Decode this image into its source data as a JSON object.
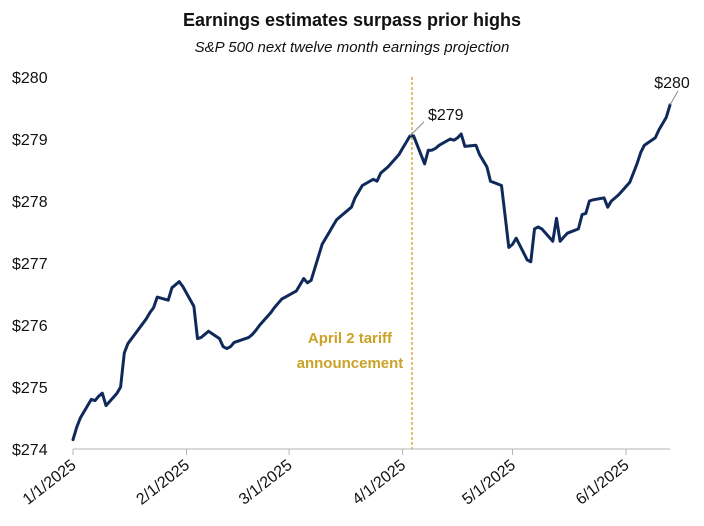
{
  "chart_data": {
    "type": "line",
    "title": "Earnings estimates surpass prior highs",
    "subtitle": "S&P 500 next twelve month earnings projection",
    "xlabel": "",
    "ylabel": "",
    "x_ticks": [
      "1/1/2025",
      "2/1/2025",
      "3/1/2025",
      "4/1/2025",
      "5/1/2025",
      "6/1/2025"
    ],
    "y_ticks": [
      "$274",
      "$275",
      "$276",
      "$277",
      "$278",
      "$279",
      "$280"
    ],
    "ylim": [
      274,
      280
    ],
    "xlim": [
      "2025-01-01",
      "2025-06-05"
    ],
    "grid": false,
    "line_color": "#0f2a5a",
    "series": [
      {
        "points": [
          [
            "2025-01-01",
            274.15
          ],
          [
            "2025-01-02",
            274.35
          ],
          [
            "2025-01-03",
            274.5
          ],
          [
            "2025-01-06",
            274.8
          ],
          [
            "2025-01-07",
            274.78
          ],
          [
            "2025-01-08",
            274.85
          ],
          [
            "2025-01-09",
            274.9
          ],
          [
            "2025-01-10",
            274.7
          ],
          [
            "2025-01-13",
            274.9
          ],
          [
            "2025-01-14",
            275.0
          ],
          [
            "2025-01-15",
            275.55
          ],
          [
            "2025-01-16",
            275.7
          ],
          [
            "2025-01-17",
            275.78
          ],
          [
            "2025-01-21",
            276.1
          ],
          [
            "2025-01-22",
            276.2
          ],
          [
            "2025-01-23",
            276.28
          ],
          [
            "2025-01-24",
            276.45
          ],
          [
            "2025-01-27",
            276.4
          ],
          [
            "2025-01-28",
            276.6
          ],
          [
            "2025-01-29",
            276.65
          ],
          [
            "2025-01-30",
            276.7
          ],
          [
            "2025-01-31",
            276.62
          ],
          [
            "2025-02-03",
            276.3
          ],
          [
            "2025-02-04",
            275.78
          ],
          [
            "2025-02-05",
            275.8
          ],
          [
            "2025-02-06",
            275.85
          ],
          [
            "2025-02-07",
            275.9
          ],
          [
            "2025-02-10",
            275.78
          ],
          [
            "2025-02-11",
            275.65
          ],
          [
            "2025-02-12",
            275.62
          ],
          [
            "2025-02-13",
            275.65
          ],
          [
            "2025-02-14",
            275.72
          ],
          [
            "2025-02-18",
            275.8
          ],
          [
            "2025-02-19",
            275.85
          ],
          [
            "2025-02-20",
            275.92
          ],
          [
            "2025-02-21",
            276.0
          ],
          [
            "2025-02-24",
            276.2
          ],
          [
            "2025-02-25",
            276.28
          ],
          [
            "2025-02-26",
            276.35
          ],
          [
            "2025-02-27",
            276.42
          ],
          [
            "2025-02-28",
            276.45
          ],
          [
            "2025-03-03",
            276.55
          ],
          [
            "2025-03-04",
            276.65
          ],
          [
            "2025-03-05",
            276.75
          ],
          [
            "2025-03-06",
            276.68
          ],
          [
            "2025-03-07",
            276.72
          ],
          [
            "2025-03-10",
            277.3
          ],
          [
            "2025-03-11",
            277.4
          ],
          [
            "2025-03-12",
            277.5
          ],
          [
            "2025-03-13",
            277.6
          ],
          [
            "2025-03-14",
            277.7
          ],
          [
            "2025-03-17",
            277.85
          ],
          [
            "2025-03-18",
            277.9
          ],
          [
            "2025-03-19",
            278.05
          ],
          [
            "2025-03-20",
            278.15
          ],
          [
            "2025-03-21",
            278.25
          ],
          [
            "2025-03-24",
            278.35
          ],
          [
            "2025-03-25",
            278.32
          ],
          [
            "2025-03-26",
            278.45
          ],
          [
            "2025-03-27",
            278.5
          ],
          [
            "2025-03-28",
            278.55
          ],
          [
            "2025-03-31",
            278.75
          ],
          [
            "2025-04-01",
            278.85
          ],
          [
            "2025-04-02",
            278.95
          ],
          [
            "2025-04-03",
            279.05
          ],
          [
            "2025-04-04",
            279.05
          ],
          [
            "2025-04-07",
            278.6
          ],
          [
            "2025-04-08",
            278.82
          ],
          [
            "2025-04-09",
            278.82
          ],
          [
            "2025-04-10",
            278.85
          ],
          [
            "2025-04-11",
            278.9
          ],
          [
            "2025-04-14",
            279.0
          ],
          [
            "2025-04-15",
            278.98
          ],
          [
            "2025-04-16",
            279.02
          ],
          [
            "2025-04-17",
            279.08
          ],
          [
            "2025-04-18",
            278.88
          ],
          [
            "2025-04-21",
            278.9
          ],
          [
            "2025-04-22",
            278.75
          ],
          [
            "2025-04-23",
            278.65
          ],
          [
            "2025-04-24",
            278.55
          ],
          [
            "2025-04-25",
            278.32
          ],
          [
            "2025-04-28",
            278.25
          ],
          [
            "2025-04-29",
            277.75
          ],
          [
            "2025-04-30",
            277.25
          ],
          [
            "2025-05-01",
            277.3
          ],
          [
            "2025-05-02",
            277.4
          ],
          [
            "2025-05-05",
            277.05
          ],
          [
            "2025-05-06",
            277.02
          ],
          [
            "2025-05-07",
            277.55
          ],
          [
            "2025-05-08",
            277.58
          ],
          [
            "2025-05-09",
            277.55
          ],
          [
            "2025-05-12",
            277.35
          ],
          [
            "2025-05-13",
            277.72
          ],
          [
            "2025-05-14",
            277.35
          ],
          [
            "2025-05-15",
            277.42
          ],
          [
            "2025-05-16",
            277.48
          ],
          [
            "2025-05-19",
            277.55
          ],
          [
            "2025-05-20",
            277.78
          ],
          [
            "2025-05-21",
            277.8
          ],
          [
            "2025-05-22",
            278.0
          ],
          [
            "2025-05-23",
            278.02
          ],
          [
            "2025-05-26",
            278.05
          ],
          [
            "2025-05-27",
            277.9
          ],
          [
            "2025-05-28",
            278.0
          ],
          [
            "2025-05-29",
            278.05
          ],
          [
            "2025-05-30",
            278.1
          ],
          [
            "2025-06-02",
            278.3
          ],
          [
            "2025-06-03",
            278.45
          ],
          [
            "2025-06-04",
            278.6
          ],
          [
            "2025-06-05",
            278.78
          ],
          [
            "2025-06-06",
            278.9
          ],
          [
            "2025-06-09",
            279.02
          ],
          [
            "2025-06-10",
            279.15
          ],
          [
            "2025-06-11",
            279.25
          ],
          [
            "2025-06-12",
            279.35
          ],
          [
            "2025-06-13",
            279.55
          ]
        ]
      }
    ],
    "annotations": [
      {
        "date": "2025-04-03",
        "value": 279.05,
        "label": "$279"
      },
      {
        "date": "2025-06-13",
        "value": 279.55,
        "label": "$280"
      }
    ],
    "event_marker": {
      "date": "2025-04-03",
      "label_line1": "April 2 tariff",
      "label_line2": "announcement",
      "color": "#c9a227"
    }
  }
}
